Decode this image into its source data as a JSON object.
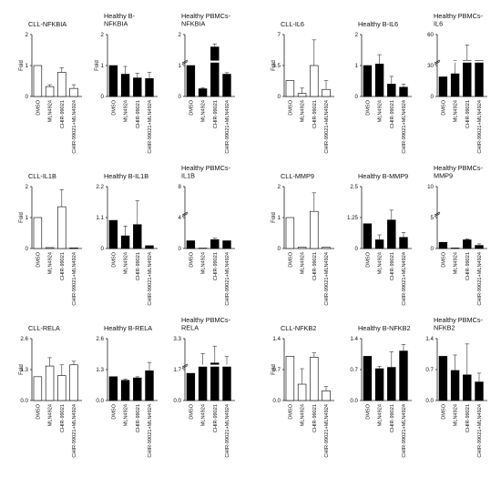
{
  "chart_data": [
    {
      "type": "bar",
      "title": [
        "CLL-NFKBIA"
      ],
      "ylabel": "Fold",
      "yticks": [
        "0",
        "1",
        "2"
      ],
      "ylim": [
        0,
        2
      ],
      "fill": "#ffffff",
      "categories": [
        "DMSO",
        "MLN4924",
        "CHIR-99021",
        "CHIR-99021+MLN4924"
      ],
      "values": [
        1.0,
        0.32,
        0.78,
        0.26
      ],
      "errors": [
        0,
        0.06,
        0.15,
        0.12
      ]
    },
    {
      "type": "bar",
      "title": [
        "Healthy B-",
        "NFKBIA"
      ],
      "ylabel": "Fold",
      "yticks": [
        "0",
        "1",
        "2"
      ],
      "ylim": [
        0,
        2
      ],
      "fill": "#000000",
      "categories": [
        "DMSO",
        "MLN4924",
        "CHIR-99021",
        "CHIR-99021+MLN4924"
      ],
      "values": [
        1.0,
        0.72,
        0.6,
        0.58
      ],
      "errors": [
        0,
        0.25,
        0.15,
        0.2
      ]
    },
    {
      "type": "bar",
      "title": [
        "Healthy PBMCs-",
        "NFKBIA"
      ],
      "ylabel": "",
      "yticks": [
        "0",
        "1",
        "2"
      ],
      "ylim": [
        0,
        2
      ],
      "fill": "#000000",
      "categories": [
        "DMSO",
        "MLN4924",
        "CHIR-99021",
        "CHIR-99021+MLN4924"
      ],
      "values": [
        1.0,
        0.25,
        1.6,
        0.72
      ],
      "errors": [
        0,
        0.03,
        0.1,
        0.05
      ],
      "break": true
    },
    {
      "type": "bar",
      "title": [
        "CLL-IL6"
      ],
      "ylabel": "Fold",
      "yticks": [
        "0",
        "3.5",
        "7"
      ],
      "ylim": [
        0,
        7
      ],
      "fill": "#ffffff",
      "categories": [
        "DMSO",
        "MLN4924",
        "CHIR-99021",
        "CHIR-99021+MLN4924"
      ],
      "values": [
        1.8,
        0.35,
        3.5,
        0.8
      ],
      "errors": [
        0,
        0.6,
        2.9,
        1.0
      ]
    },
    {
      "type": "bar",
      "title": [
        "Healthy B-IL6"
      ],
      "ylabel": "",
      "yticks": [
        "0",
        "1",
        "2"
      ],
      "ylim": [
        0,
        2
      ],
      "fill": "#000000",
      "categories": [
        "DMSO",
        "MLN4924",
        "CHIR-99021",
        "CHIR-99021+MLN4924"
      ],
      "values": [
        1.0,
        1.05,
        0.4,
        0.3
      ],
      "errors": [
        0,
        0.3,
        0.25,
        0.1
      ]
    },
    {
      "type": "bar",
      "title": [
        "Healthy PBMCs-",
        "IL6"
      ],
      "ylabel": "",
      "yticks": [
        "0",
        "30",
        "60"
      ],
      "ylim": [
        0,
        60
      ],
      "fill": "#000000",
      "categories": [
        "DMSO",
        "MLN4924",
        "CHIR-99021",
        "CHIR-99021+MLN4924"
      ],
      "values": [
        19,
        22,
        35,
        35
      ],
      "errors": [
        0,
        13,
        15,
        0
      ],
      "break": true
    },
    {
      "type": "bar",
      "title": [
        "CLL-IL1B"
      ],
      "ylabel": "Fold",
      "yticks": [
        "0",
        "1",
        "2"
      ],
      "ylim": [
        0,
        2
      ],
      "fill": "#ffffff",
      "categories": [
        "DMSO",
        "MLN4924",
        "CHIR-99021",
        "CHIR-99021+MLN4924"
      ],
      "values": [
        1.0,
        0.03,
        1.35,
        0.02
      ],
      "errors": [
        0,
        0,
        0.55,
        0
      ]
    },
    {
      "type": "bar",
      "title": [
        "Healthy B-IL1B"
      ],
      "ylabel": "",
      "yticks": [
        "0",
        "1.1",
        "2.2"
      ],
      "ylim": [
        0,
        2.2
      ],
      "fill": "#000000",
      "categories": [
        "DMSO",
        "MLN4924",
        "CHIR-99021",
        "CHIR-99021+MLN4924"
      ],
      "values": [
        1.0,
        0.45,
        0.85,
        0.1
      ],
      "errors": [
        0,
        0.35,
        0.85,
        0
      ]
    },
    {
      "type": "bar",
      "title": [
        "Healthy PBMCs-",
        "IL1B"
      ],
      "ylabel": "",
      "yticks": [
        "0",
        "4",
        "8"
      ],
      "ylim": [
        0,
        8
      ],
      "fill": "#000000",
      "categories": [
        "DMSO",
        "MLN4924",
        "CHIR-99021",
        "CHIR-99021+MLN4924"
      ],
      "values": [
        1.0,
        0.05,
        1.15,
        1.0
      ],
      "errors": [
        0,
        0,
        0.18,
        0
      ],
      "break": true
    },
    {
      "type": "bar",
      "title": [
        "CLL-MMP9"
      ],
      "ylabel": "Fold",
      "yticks": [
        "0",
        "1",
        "2"
      ],
      "ylim": [
        0,
        2
      ],
      "fill": "#ffffff",
      "categories": [
        "DMSO",
        "MLN4924",
        "CHIR-99021",
        "CHIR-99021+MLN4924"
      ],
      "values": [
        1.0,
        0.04,
        1.2,
        0.04
      ],
      "errors": [
        0,
        0,
        0.6,
        0
      ]
    },
    {
      "type": "bar",
      "title": [
        "Healthy B-MMP9"
      ],
      "ylabel": "",
      "yticks": [
        "0",
        "1.25",
        "2.5"
      ],
      "ylim": [
        0,
        2.5
      ],
      "fill": "#000000",
      "categories": [
        "DMSO",
        "MLN4924",
        "CHIR-99021",
        "CHIR-99021+MLN4924"
      ],
      "values": [
        1.0,
        0.35,
        1.15,
        0.45
      ],
      "errors": [
        0,
        0.2,
        0.4,
        0.2
      ]
    },
    {
      "type": "bar",
      "title": [
        "Healthy PBMCs-",
        "MMP9"
      ],
      "ylabel": "",
      "yticks": [
        "0",
        "5",
        "10"
      ],
      "ylim": [
        0,
        10
      ],
      "fill": "#000000",
      "categories": [
        "DMSO",
        "MLN4924",
        "CHIR-99021",
        "CHIR-99021+MLN4924"
      ],
      "values": [
        1.0,
        0.08,
        1.4,
        0.5
      ],
      "errors": [
        0,
        0,
        0.15,
        0.25
      ],
      "break": true
    },
    {
      "type": "bar",
      "title": [
        "CLL-RELA"
      ],
      "ylabel": "Fold",
      "yticks": [
        "0.0",
        "1.3",
        "2.6"
      ],
      "ylim": [
        0,
        2.6
      ],
      "fill": "#ffffff",
      "categories": [
        "DMSO",
        "MLN4924",
        "CHIR-99021",
        "CHIR-99021+MLN4924"
      ],
      "values": [
        1.0,
        1.45,
        1.05,
        1.5
      ],
      "errors": [
        0,
        0.35,
        0.45,
        0.15
      ]
    },
    {
      "type": "bar",
      "title": [
        "Healthy B-RELA"
      ],
      "ylabel": "",
      "yticks": [
        "0.0",
        "1.3",
        "2.6"
      ],
      "ylim": [
        0,
        2.6
      ],
      "fill": "#000000",
      "categories": [
        "DMSO",
        "MLN4924",
        "CHIR-99021",
        "CHIR-99021+MLN4924"
      ],
      "values": [
        1.0,
        0.85,
        0.95,
        1.25
      ],
      "errors": [
        0,
        0.05,
        0.05,
        0.35
      ]
    },
    {
      "type": "bar",
      "title": [
        "Healthy PBMCs-",
        "RELA"
      ],
      "ylabel": "",
      "yticks": [
        "0.0",
        "1.7",
        "3.3"
      ],
      "ylim": [
        0,
        3.3
      ],
      "fill": "#000000",
      "categories": [
        "DMSO",
        "MLN4924",
        "CHIR-99021",
        "CHIR-99021+MLN4924"
      ],
      "values": [
        1.45,
        1.8,
        2.0,
        1.85
      ],
      "errors": [
        0,
        0.7,
        0.9,
        0.5
      ],
      "break": true
    },
    {
      "type": "bar",
      "title": [
        "CLL-NFKB2"
      ],
      "ylabel": "Fold",
      "yticks": [
        "0.0",
        "0.7",
        "1.4"
      ],
      "ylim": [
        0,
        1.4
      ],
      "fill": "#ffffff",
      "categories": [
        "DMSO",
        "MLN4924",
        "CHIR-99021",
        "CHIR-99021+MLN4924"
      ],
      "values": [
        1.0,
        0.37,
        0.98,
        0.22
      ],
      "errors": [
        0,
        0.35,
        0.1,
        0.1
      ]
    },
    {
      "type": "bar",
      "title": [
        "Healthy B-NFKB2"
      ],
      "ylabel": "",
      "yticks": [
        "0.0",
        "0.7",
        "1.4"
      ],
      "ylim": [
        0,
        1.4
      ],
      "fill": "#000000",
      "categories": [
        "DMSO",
        "MLN4924",
        "CHIR-99021",
        "CHIR-99021+MLN4924"
      ],
      "values": [
        1.0,
        0.72,
        0.75,
        1.12
      ],
      "errors": [
        0,
        0.05,
        0.35,
        0.15
      ]
    },
    {
      "type": "bar",
      "title": [
        "Healthy PBMCs-",
        "NFKB2"
      ],
      "ylabel": "",
      "yticks": [
        "0.0",
        "0.7",
        "1.4"
      ],
      "ylim": [
        0,
        1.4
      ],
      "fill": "#000000",
      "categories": [
        "DMSO",
        "MLN4924",
        "CHIR-99021",
        "CHIR-99021+MLN4924"
      ],
      "values": [
        1.0,
        0.68,
        0.58,
        0.42
      ],
      "errors": [
        0,
        0.35,
        0.7,
        0.2
      ]
    }
  ]
}
